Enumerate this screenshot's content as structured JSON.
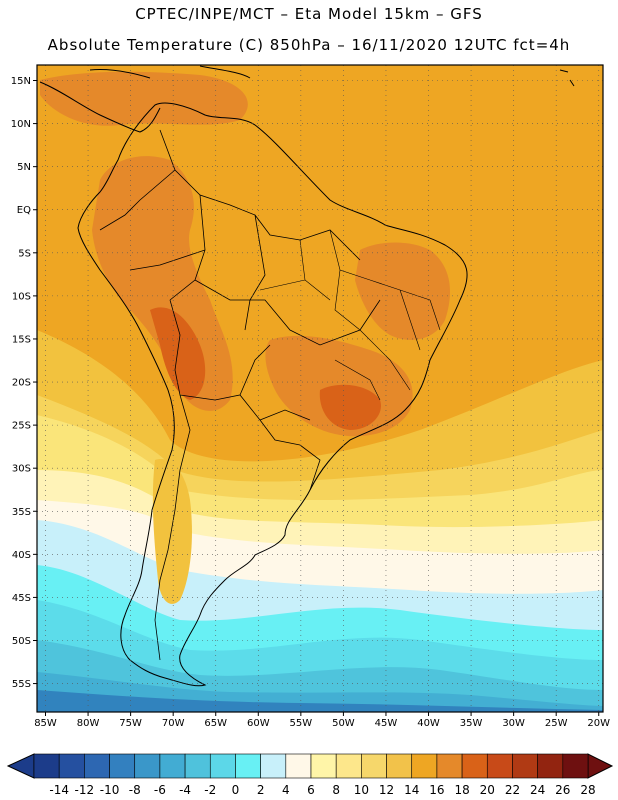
{
  "title": {
    "line1": "CPTEC/INPE/MCT –  Eta Model 15km – GFS",
    "line2": "Absolute Temperature (C) 850hPa – 16/11/2020 12UTC fct=4h"
  },
  "map": {
    "lon_range": [
      -86,
      -19.5
    ],
    "lat_range": [
      -58.3,
      16.8
    ],
    "lat_ticks": [
      {
        "value": 15,
        "label": "15N"
      },
      {
        "value": 10,
        "label": "10N"
      },
      {
        "value": 5,
        "label": "5N"
      },
      {
        "value": 0,
        "label": "EQ"
      },
      {
        "value": -5,
        "label": "5S"
      },
      {
        "value": -10,
        "label": "10S"
      },
      {
        "value": -15,
        "label": "15S"
      },
      {
        "value": -20,
        "label": "20S"
      },
      {
        "value": -25,
        "label": "25S"
      },
      {
        "value": -30,
        "label": "30S"
      },
      {
        "value": -35,
        "label": "35S"
      },
      {
        "value": -40,
        "label": "40S"
      },
      {
        "value": -45,
        "label": "45S"
      },
      {
        "value": -50,
        "label": "50S"
      },
      {
        "value": -55,
        "label": "55S"
      }
    ],
    "lon_ticks": [
      {
        "value": -85,
        "label": "85W"
      },
      {
        "value": -80,
        "label": "80W"
      },
      {
        "value": -75,
        "label": "75W"
      },
      {
        "value": -70,
        "label": "70W"
      },
      {
        "value": -65,
        "label": "65W"
      },
      {
        "value": -60,
        "label": "60W"
      },
      {
        "value": -55,
        "label": "55W"
      },
      {
        "value": -50,
        "label": "50W"
      },
      {
        "value": -45,
        "label": "45W"
      },
      {
        "value": -40,
        "label": "40W"
      },
      {
        "value": -35,
        "label": "35W"
      },
      {
        "value": -30,
        "label": "30W"
      },
      {
        "value": -25,
        "label": "25W"
      },
      {
        "value": -20,
        "label": "20W"
      }
    ],
    "colors": {
      "t_neg14": "#1a3f8c",
      "t_neg12": "#2154a0",
      "t_neg10": "#2b6cb3",
      "t_neg8": "#3183be",
      "t_neg6": "#3a9ac8",
      "t_neg4": "#43afd3",
      "t_neg2": "#4fc4dc",
      "t_0": "#5cdcea",
      "t_2": "#68f0f4",
      "t_4": "#c8f0fa",
      "t_6": "#fff8e8",
      "t_8": "#fff3b8",
      "t_10": "#fef08a",
      "t_12": "#fae57a",
      "t_14": "#f6d45c",
      "t_16": "#f2c23e",
      "t_18": "#eea623",
      "t_20": "#e5892a",
      "t_22": "#d96218",
      "t_24": "#c84a18",
      "t_26": "#a82e10",
      "t_28": "#7c1a10"
    }
  },
  "colorbar": {
    "labels": [
      "-14",
      "-12",
      "-10",
      "-8",
      "-6",
      "-4",
      "-2",
      "0",
      "2",
      "4",
      "6",
      "8",
      "10",
      "12",
      "14",
      "16",
      "18",
      "20",
      "22",
      "24",
      "26",
      "28"
    ],
    "colors": [
      "#1c3c8a",
      "#2550a0",
      "#2d67b2",
      "#3380bf",
      "#3a97c9",
      "#42acd3",
      "#4fc2dc",
      "#5cd7e8",
      "#68f0f4",
      "#c8f0fa",
      "#fff8e8",
      "#fff5a8",
      "#fde78b",
      "#f6d76b",
      "#f2c24a",
      "#eea623",
      "#e5892a",
      "#d96218",
      "#c84a18",
      "#b03a14",
      "#922410",
      "#6e1010"
    ],
    "under_color": "#1c3c8a",
    "over_color": "#6e1010"
  }
}
